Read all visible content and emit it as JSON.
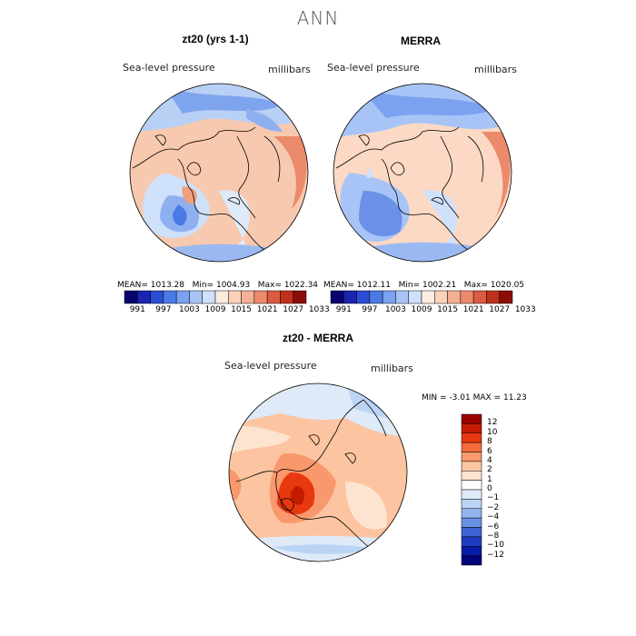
{
  "title": "ANN",
  "panels": [
    {
      "title": "zt20 (yrs 1-1)",
      "field": "Sea-level pressure",
      "units": "millibars",
      "stats": {
        "mean_label": "MEAN=",
        "mean": "1013.28",
        "min_label": "Min=",
        "min": "1004.93",
        "max_label": "Max=",
        "max": "1022.34"
      }
    },
    {
      "title": "MERRA",
      "field": "Sea-level pressure",
      "units": "millibars",
      "stats": {
        "mean_label": "MEAN=",
        "mean": "1012.11",
        "min_label": "Min=",
        "min": "1002.21",
        "max_label": "Max=",
        "max": "1020.05"
      }
    }
  ],
  "abs_colorbar": {
    "colors": [
      "#08036e",
      "#1b24b0",
      "#2b4ed4",
      "#4a7ae6",
      "#7aa2f0",
      "#a8c4f6",
      "#cfe0fa",
      "#fbece0",
      "#fbd2b8",
      "#f5b094",
      "#ec8a6c",
      "#dc5a40",
      "#c0301c",
      "#8c0d06"
    ],
    "labels": [
      "991",
      "997",
      "1003",
      "1009",
      "1015",
      "1021",
      "1027",
      "1033"
    ]
  },
  "diff_panel": {
    "title": "zt20 - MERRA",
    "field": "Sea-level pressure",
    "units": "millibars",
    "min_label": "MIN =",
    "min": "-3.01",
    "max_label": "MAX =",
    "max": "11.23"
  },
  "diff_colorbar": {
    "colors": [
      "#990000",
      "#c41a00",
      "#e8380f",
      "#f56a3a",
      "#f9986c",
      "#fcc4a0",
      "#fde4d0",
      "#ffffff",
      "#dfeaf8",
      "#bcd4f4",
      "#92b4ee",
      "#6890e4",
      "#3c62d6",
      "#1e3cc2",
      "#0a1aa8",
      "#02037a"
    ],
    "labels": [
      "12",
      "10",
      "8",
      "6",
      "4",
      "2",
      "1",
      "0",
      "−1",
      "−2",
      "−4",
      "−6",
      "−8",
      "−10",
      "−12"
    ]
  }
}
